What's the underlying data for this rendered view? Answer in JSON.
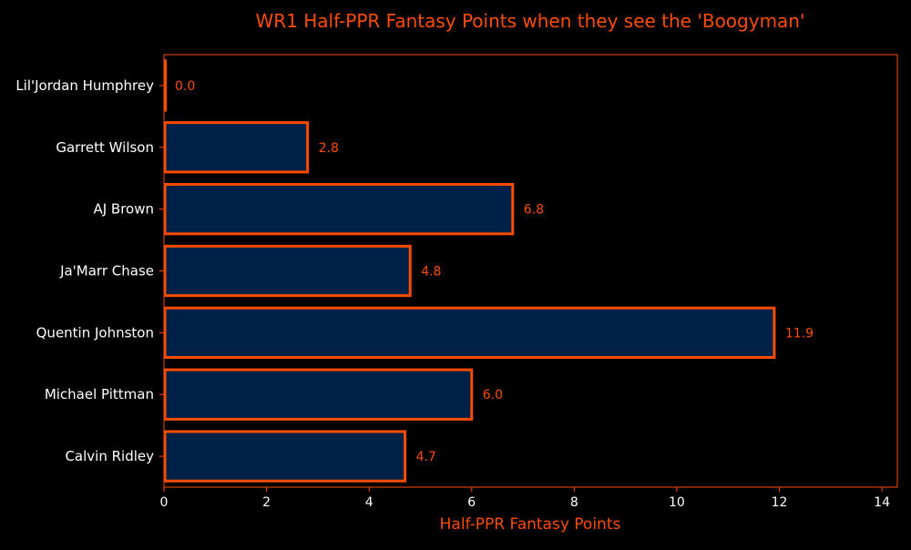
{
  "chart_data": {
    "type": "bar",
    "orientation": "horizontal",
    "title": "WR1 Half-PPR Fantasy Points when they see the 'Boogyman'",
    "xlabel": "Half-PPR Fantasy Points",
    "ylabel": "",
    "xlim": [
      0,
      14.3
    ],
    "xticks": [
      "0",
      "2",
      "4",
      "6",
      "8",
      "10",
      "12",
      "14"
    ],
    "grid": false,
    "categories": [
      "Lil'Jordan Humphrey",
      "Garrett Wilson",
      "AJ Brown",
      "Ja'Marr Chase",
      "Quentin Johnston",
      "Michael Pittman",
      "Calvin Ridley"
    ],
    "values": [
      0.0,
      2.8,
      6.8,
      4.8,
      11.9,
      6.0,
      4.7
    ],
    "data_labels": [
      "0.0",
      "2.8",
      "6.8",
      "4.8",
      "11.9",
      "6.0",
      "4.7"
    ],
    "colors": {
      "background": "#000000",
      "bar_fill": "#002147",
      "bar_edge": "#fc4c02",
      "accent": "#fc4c02",
      "tick_text": "#ffffff"
    }
  }
}
